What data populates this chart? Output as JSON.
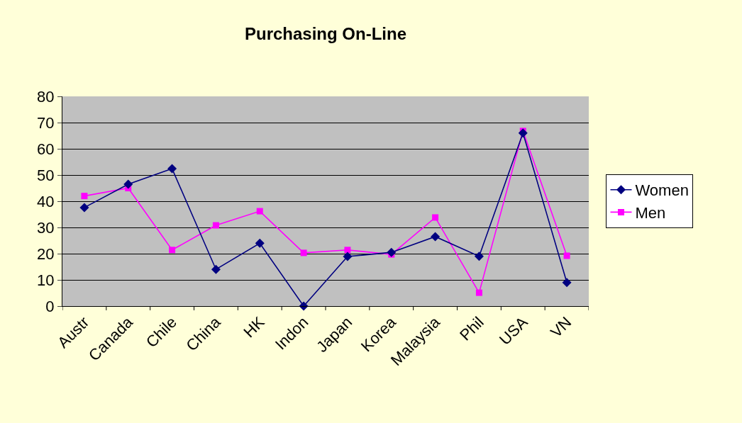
{
  "chart_data": {
    "type": "line",
    "title": "Purchasing On-Line",
    "categories": [
      "Austr",
      "Canada",
      "Chile",
      "China",
      "HK",
      "Indon",
      "Japan",
      "Korea",
      "Malaysia",
      "Phil",
      "USA",
      "VN"
    ],
    "series": [
      {
        "name": "Women",
        "color": "#000080",
        "marker": "diamond",
        "values": [
          37.6,
          46.5,
          52.4,
          14,
          24,
          0,
          18.9,
          20.5,
          26.5,
          19,
          66,
          9
        ]
      },
      {
        "name": "Men",
        "color": "#ff00ff",
        "marker": "square",
        "values": [
          42,
          45,
          21.4,
          30.8,
          36.2,
          20.3,
          21.4,
          19.7,
          33.8,
          5.1,
          66.8,
          19.2
        ]
      }
    ],
    "ylim": [
      0,
      80
    ],
    "yticks": [
      0,
      10,
      20,
      30,
      40,
      50,
      60,
      70,
      80
    ],
    "grid": "y",
    "legend": "right"
  }
}
